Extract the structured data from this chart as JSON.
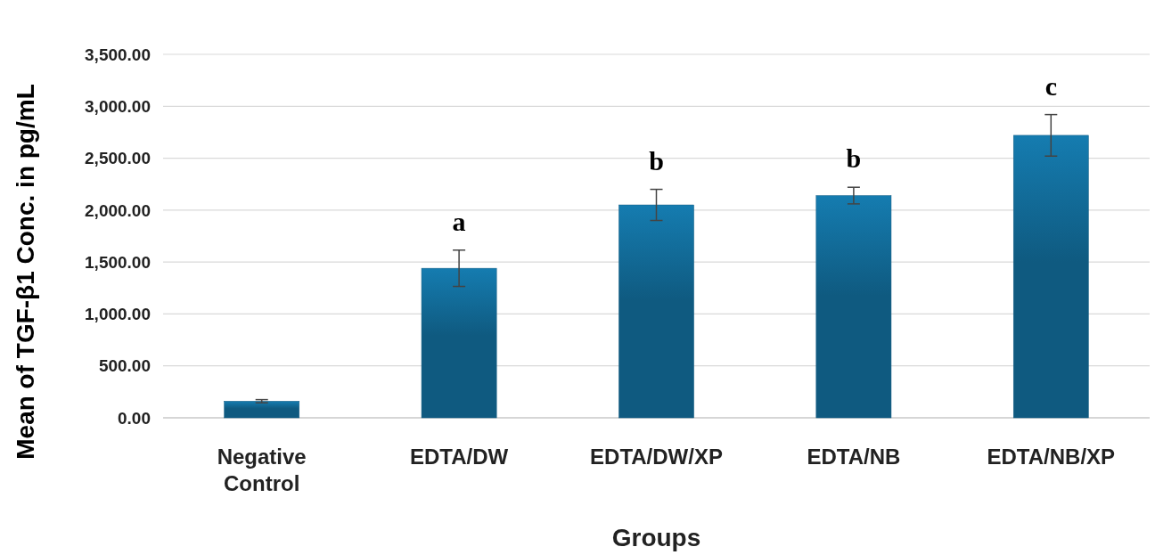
{
  "chart_data": {
    "type": "bar",
    "xlabel": "Groups",
    "ylabel": "Mean of TGF-β1 Conc. in pg/mL",
    "categories": [
      "Negative Control",
      "EDTA/DW",
      "EDTA/DW/XP",
      "EDTA/NB",
      "EDTA/NB/XP"
    ],
    "values": [
      160,
      1440,
      2050,
      2140,
      2720
    ],
    "errors": [
      15,
      175,
      150,
      80,
      200
    ],
    "color": "#0f5a80",
    "ylim": [
      0,
      3500
    ],
    "yticks": [
      {
        "value": 0,
        "label": "0.00"
      },
      {
        "value": 500,
        "label": "500.00"
      },
      {
        "value": 1000,
        "label": "1,000.00"
      },
      {
        "value": 1500,
        "label": "1,500.00"
      },
      {
        "value": 2000,
        "label": "2,000.00"
      },
      {
        "value": 2500,
        "label": "2,500.00"
      },
      {
        "value": 3000,
        "label": "3,000.00"
      },
      {
        "value": 3500,
        "label": "3,500.00"
      }
    ],
    "grid": "y",
    "annotations": [
      {
        "text": "a",
        "x": "EDTA/DW",
        "y": 1615
      },
      {
        "text": "b",
        "x": "EDTA/DW/XP",
        "y": 2200
      },
      {
        "text": "b",
        "x": "EDTA/NB",
        "y": 2220
      },
      {
        "text": "c",
        "x": "EDTA/NB/XP",
        "y": 2920
      }
    ]
  }
}
